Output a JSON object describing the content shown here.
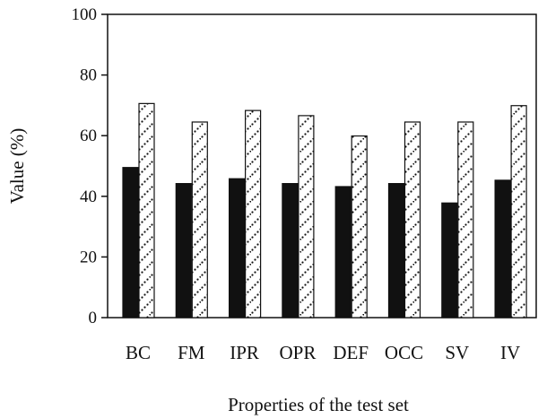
{
  "chart_data": {
    "type": "bar",
    "categories": [
      "BC",
      "FM",
      "IPR",
      "OPR",
      "DEF",
      "OCC",
      "SV",
      "IV"
    ],
    "series": [
      {
        "style": "solid",
        "color": "#111111",
        "values": [
          49.5,
          44.2,
          45.8,
          44.2,
          43.2,
          44.2,
          37.8,
          45.3
        ]
      },
      {
        "style": "dotted-hatch",
        "color": "#ffffff",
        "values": [
          70.6,
          64.5,
          68.3,
          66.6,
          59.9,
          64.5,
          64.5,
          69.9
        ]
      }
    ],
    "xlabel": "Properties of the test set",
    "ylabel": "Value (%)",
    "ylim": [
      0,
      100
    ],
    "yticks": [
      0,
      20,
      40,
      60,
      80,
      100
    ],
    "grid": false,
    "legend": "none"
  }
}
